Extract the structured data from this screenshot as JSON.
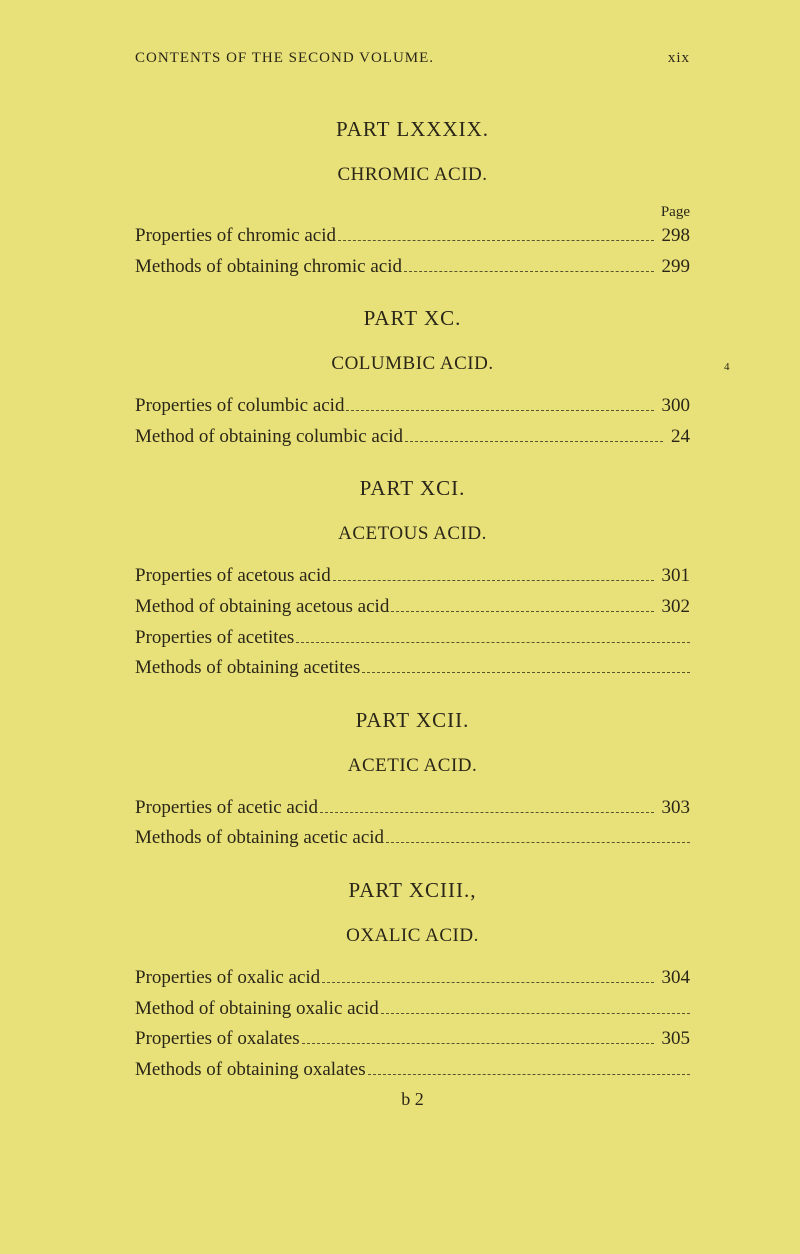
{
  "header": {
    "left": "CONTENTS OF THE SECOND VOLUME.",
    "right": "xix"
  },
  "pageLabel": "Page",
  "parts": [
    {
      "title": "PART LXXXIX.",
      "subject": "CHROMIC ACID.",
      "showPageLabel": true,
      "entries": [
        {
          "text": "Properties of chromic acid",
          "page": "298"
        },
        {
          "text": "Methods of obtaining chromic acid",
          "page": "299"
        }
      ]
    },
    {
      "title": "PART XC.",
      "subject": "COLUMBIC ACID.",
      "showPageLabel": false,
      "sideMark": "4",
      "entries": [
        {
          "text": "Properties of columbic acid",
          "page": "300"
        },
        {
          "text": "Method of obtaining columbic acid",
          "page": "24"
        }
      ]
    },
    {
      "title": "PART XCI.",
      "subject": "ACETOUS ACID.",
      "showPageLabel": false,
      "entries": [
        {
          "text": "Properties of acetous acid",
          "page": "301"
        },
        {
          "text": "Method of obtaining acetous acid",
          "page": "302"
        },
        {
          "text": "Properties of acetites",
          "page": ""
        },
        {
          "text": "Methods of obtaining acetites",
          "page": ""
        }
      ]
    },
    {
      "title": "PART XCII.",
      "subject": "ACETIC ACID.",
      "showPageLabel": false,
      "entries": [
        {
          "text": "Properties of acetic acid",
          "page": "303"
        },
        {
          "text": "Methods of obtaining acetic acid",
          "page": ""
        }
      ]
    },
    {
      "title": "PART XCIII.,",
      "subject": "OXALIC ACID.",
      "showPageLabel": false,
      "entries": [
        {
          "text": "Properties of oxalic acid",
          "page": "304"
        },
        {
          "text": "Method of obtaining oxalic acid",
          "page": ""
        },
        {
          "text": "Properties of oxalates",
          "page": "305"
        },
        {
          "text": "Methods of obtaining oxalates",
          "page": ""
        }
      ]
    }
  ],
  "footer": "b 2",
  "colors": {
    "background": "#e8e078",
    "text": "#2a2618"
  },
  "typography": {
    "header_fontsize": 15,
    "part_title_fontsize": 21,
    "subject_title_fontsize": 19,
    "entry_fontsize": 19,
    "footer_fontsize": 18
  }
}
